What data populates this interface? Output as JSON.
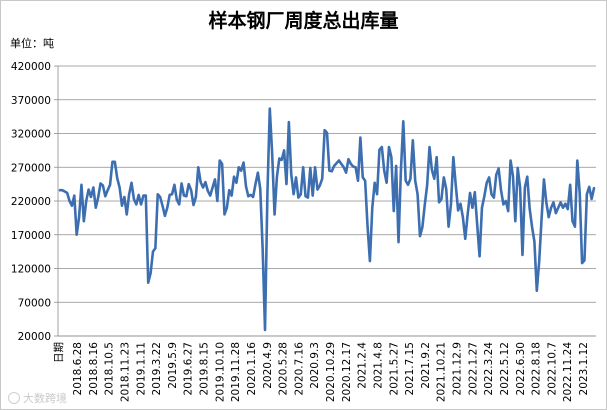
{
  "chart_data": {
    "type": "line",
    "title": "样本钢厂周度总出库量",
    "unit_label": "单位：吨",
    "xlabel": "日期",
    "ylabel": "",
    "ylim": [
      20000,
      420000
    ],
    "y_ticks": [
      20000,
      70000,
      120000,
      170000,
      220000,
      270000,
      320000,
      370000,
      420000
    ],
    "y_tick_labels": [
      "20000",
      "70000",
      "120000",
      "170000",
      "220000",
      "270000",
      "320000",
      "370000",
      "420000"
    ],
    "x_tick_labels": [
      "2018.6.28",
      "2018.8.16",
      "2018.10.5",
      "2018.11.23",
      "2019.1.11",
      "2019.3.22",
      "2019.5.9",
      "2019.6.27",
      "2019.8.15",
      "2019.10.10",
      "2019.11.28",
      "2020.1.16",
      "2020.4.9",
      "2020.5.28",
      "2020.7.16",
      "2020.9.3",
      "2020.10.29",
      "2020.12.17",
      "2021.2.4",
      "2021.4.8",
      "2021.5.27",
      "2021.7.15",
      "2021.9.2",
      "2021.10.21",
      "2021.12.9",
      "2022.1.27",
      "2022.3.24",
      "2022.5.12",
      "2022.6.30",
      "2022.8.18",
      "2022.10.7",
      "2022.11.24",
      "2023.1.12"
    ],
    "grid": "horizontal",
    "legend": "none",
    "series": [
      {
        "color": "#3d6fb0",
        "values": [
          236000,
          236000,
          234000,
          232000,
          220000,
          213000,
          228000,
          170000,
          196000,
          244000,
          190000,
          220000,
          237000,
          226000,
          240000,
          210000,
          225000,
          246000,
          243000,
          227000,
          236000,
          244000,
          278000,
          278000,
          254000,
          240000,
          213000,
          226000,
          200000,
          230000,
          247000,
          223000,
          215000,
          229000,
          215000,
          228000,
          228000,
          99000,
          113000,
          145000,
          150000,
          230000,
          226000,
          213000,
          198000,
          210000,
          229000,
          230000,
          244000,
          222000,
          215000,
          246000,
          228000,
          227000,
          245000,
          236000,
          214000,
          226000,
          270000,
          248000,
          240000,
          248000,
          235000,
          228000,
          240000,
          252000,
          220000,
          280000,
          275000,
          200000,
          210000,
          236000,
          228000,
          256000,
          247000,
          270000,
          265000,
          277000,
          242000,
          227000,
          229000,
          226000,
          245000,
          262000,
          238000,
          150000,
          29000,
          230000,
          357000,
          290000,
          200000,
          256000,
          283000,
          281000,
          295000,
          245000,
          337000,
          260000,
          230000,
          255000,
          225000,
          230000,
          270000,
          227000,
          225000,
          269000,
          228000,
          270000,
          237000,
          243000,
          253000,
          325000,
          321000,
          265000,
          264000,
          272000,
          276000,
          280000,
          275000,
          270000,
          262000,
          282000,
          275000,
          271000,
          270000,
          250000,
          314000,
          255000,
          250000,
          183000,
          131000,
          210000,
          247000,
          230000,
          296000,
          300000,
          265000,
          247000,
          300000,
          285000,
          205000,
          272000,
          159000,
          265000,
          338000,
          250000,
          244000,
          253000,
          310000,
          250000,
          230000,
          168000,
          181000,
          214000,
          243000,
          300000,
          266000,
          253000,
          285000,
          218000,
          223000,
          255000,
          238000,
          182000,
          215000,
          285000,
          244000,
          206000,
          216000,
          196000,
          164000,
          200000,
          232000,
          210000,
          233000,
          185000,
          138000,
          210000,
          227000,
          247000,
          255000,
          230000,
          225000,
          259000,
          268000,
          236000,
          215000,
          220000,
          205000,
          280000,
          257000,
          190000,
          269000,
          240000,
          140000,
          240000,
          256000,
          209000,
          182000,
          160000,
          87000,
          130000,
          193000,
          252000,
          218000,
          196000,
          210000,
          218000,
          202000,
          210000,
          218000,
          210000,
          216000,
          208000,
          244000,
          190000,
          182000,
          280000,
          232000,
          128000,
          132000,
          230000,
          241000,
          223000,
          239000
        ]
      }
    ]
  },
  "watermark": {
    "text": "大数跨境"
  }
}
